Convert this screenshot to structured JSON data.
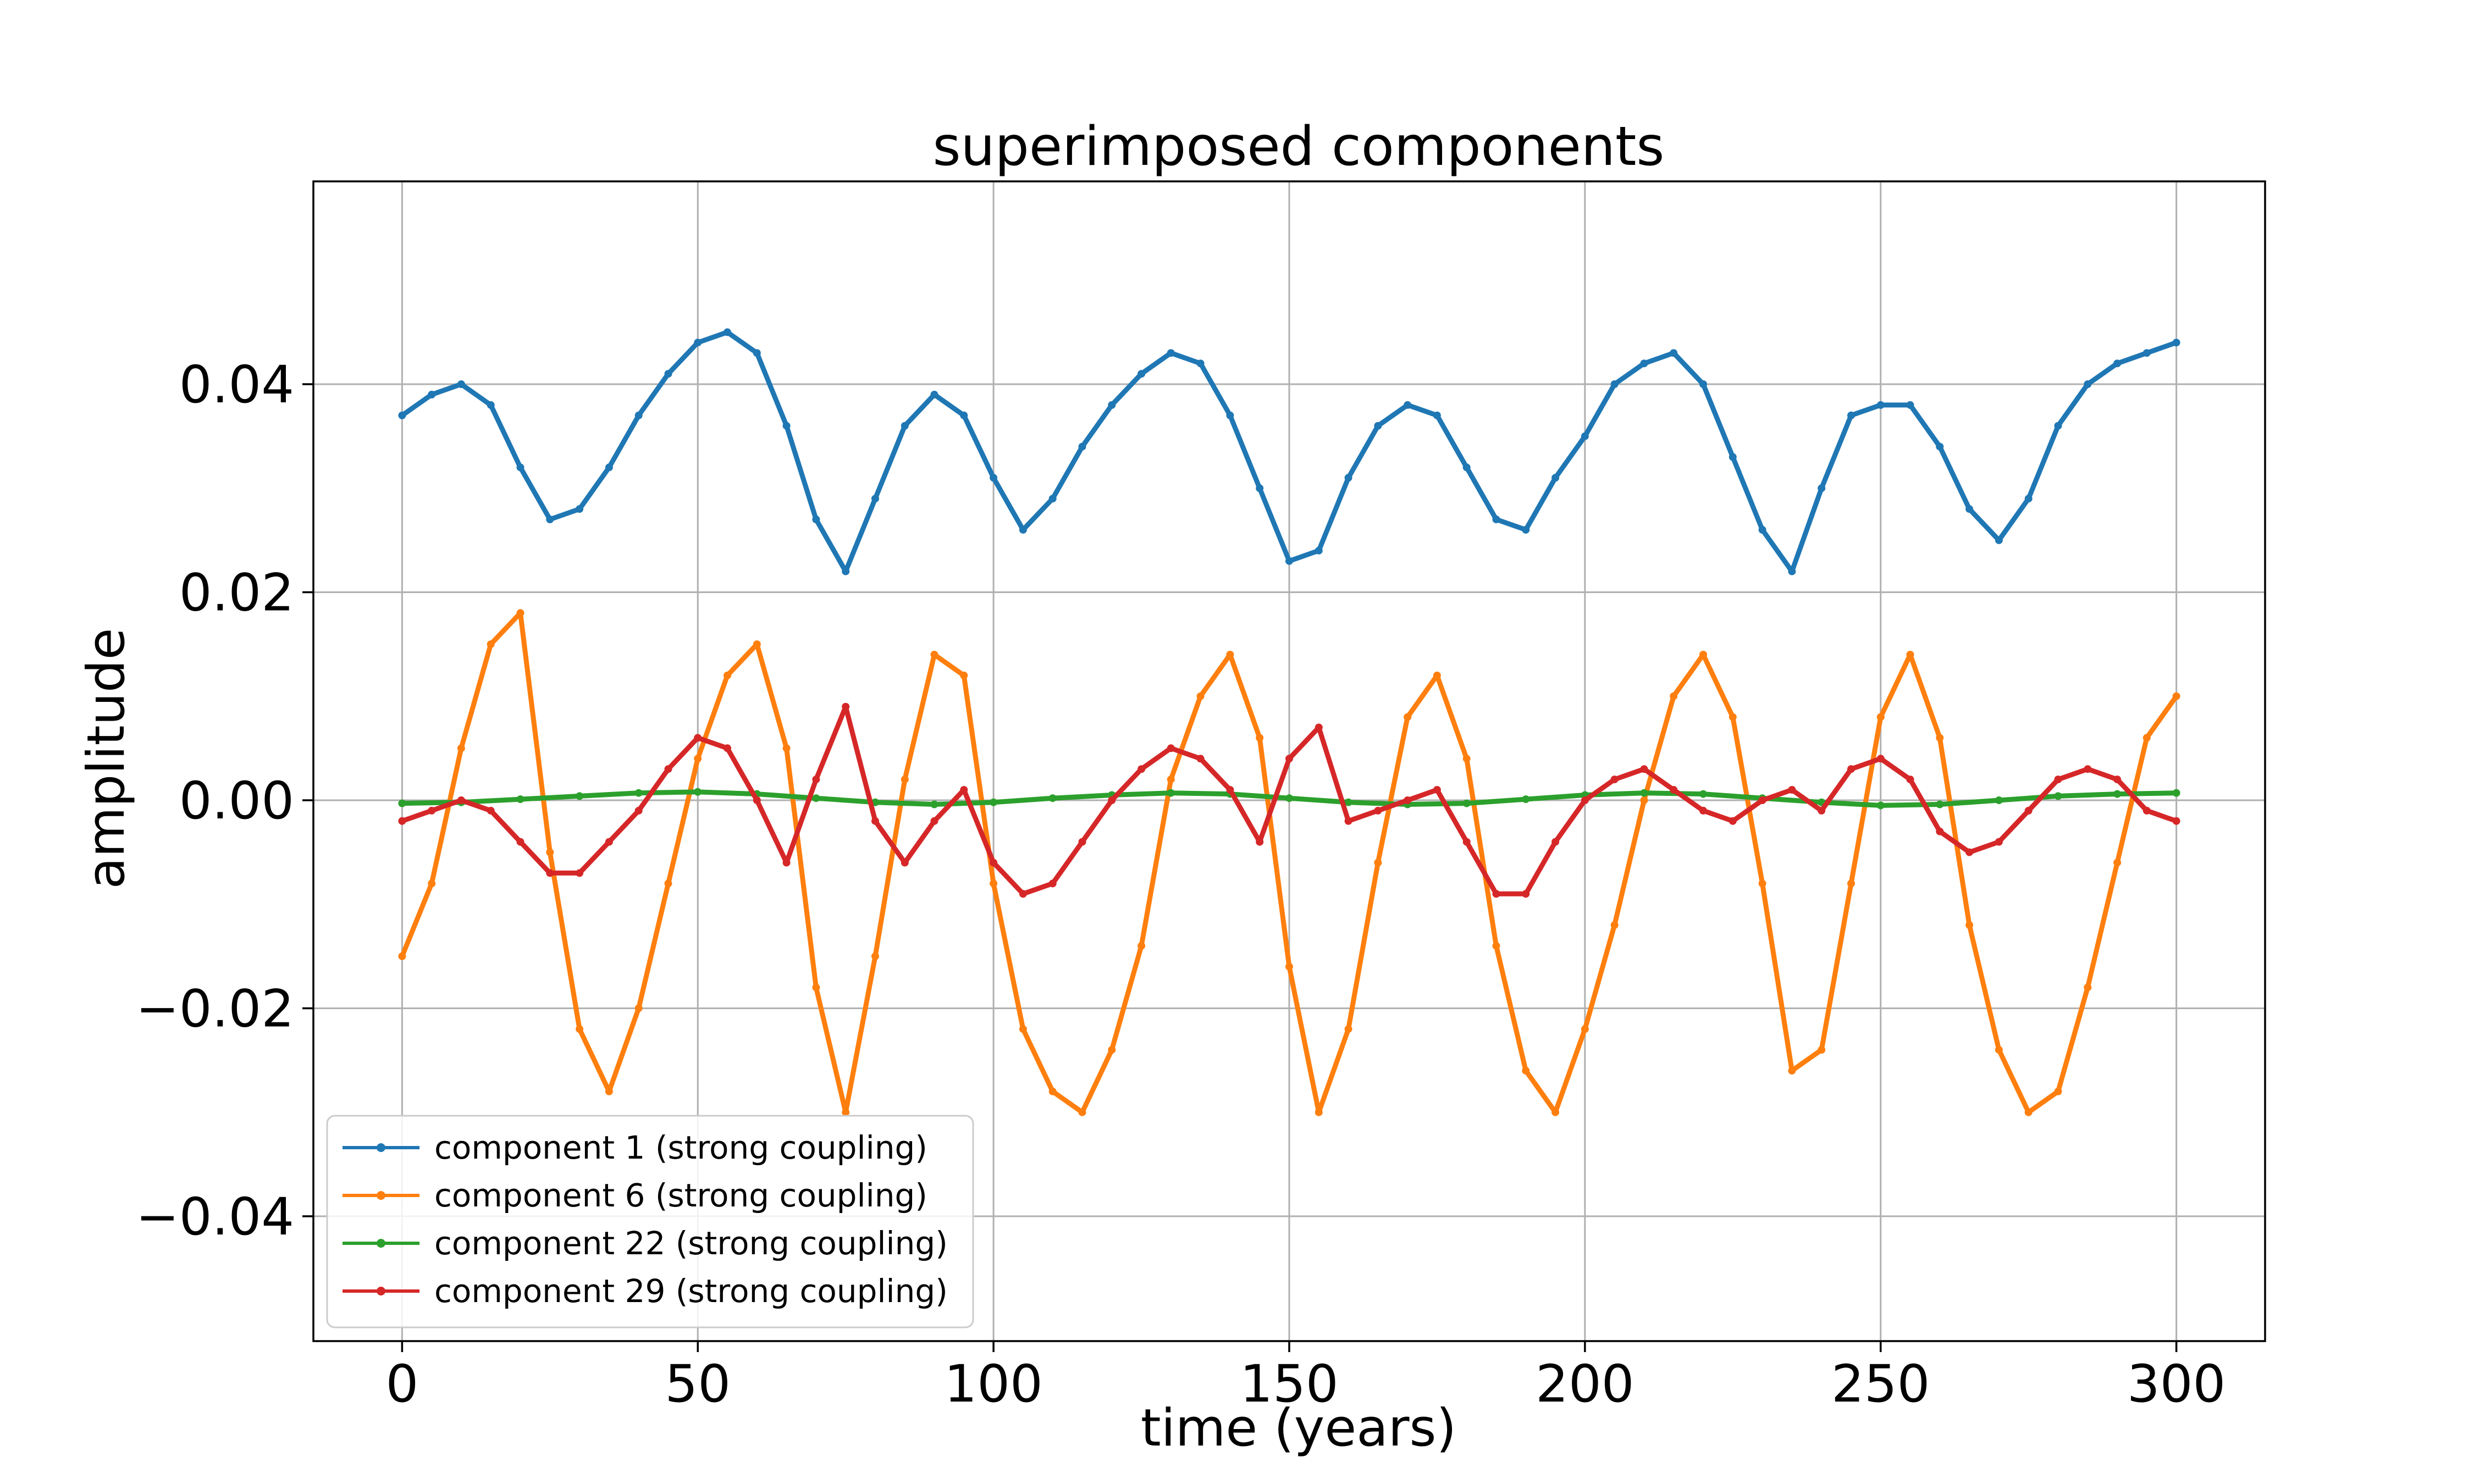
{
  "chart_data": {
    "type": "line",
    "title": "superimposed components",
    "xlabel": "time (years)",
    "ylabel": "amplitude",
    "xlim": [
      -15,
      315
    ],
    "ylim": [
      -0.052,
      0.0595
    ],
    "xticks": [
      0,
      50,
      100,
      150,
      200,
      250,
      300
    ],
    "xtick_labels": [
      "0",
      "50",
      "100",
      "150",
      "200",
      "250",
      "300"
    ],
    "yticks": [
      0.04,
      0.02,
      0.0,
      -0.02,
      -0.04
    ],
    "ytick_labels": [
      "0.04",
      "0.02",
      "0.00",
      "−0.02",
      "−0.04"
    ],
    "grid": true,
    "legend_position": "lower-left",
    "series": [
      {
        "name": "component 1 (strong coupling)",
        "color": "#1f77b4",
        "x": [
          0,
          5,
          10,
          15,
          20,
          25,
          30,
          35,
          40,
          45,
          50,
          55,
          60,
          65,
          70,
          75,
          80,
          85,
          90,
          95,
          100,
          105,
          110,
          115,
          120,
          125,
          130,
          135,
          140,
          145,
          150,
          155,
          160,
          165,
          170,
          175,
          180,
          185,
          190,
          195,
          200,
          205,
          210,
          215,
          220,
          225,
          230,
          235,
          240,
          245,
          250,
          255,
          260,
          265,
          270,
          275,
          280,
          285,
          290,
          295,
          300
        ],
        "y": [
          0.037,
          0.039,
          0.04,
          0.038,
          0.032,
          0.027,
          0.028,
          0.032,
          0.037,
          0.041,
          0.044,
          0.045,
          0.043,
          0.036,
          0.027,
          0.022,
          0.029,
          0.036,
          0.039,
          0.037,
          0.031,
          0.026,
          0.029,
          0.034,
          0.038,
          0.041,
          0.043,
          0.042,
          0.037,
          0.03,
          0.023,
          0.024,
          0.031,
          0.036,
          0.038,
          0.037,
          0.032,
          0.027,
          0.026,
          0.031,
          0.035,
          0.04,
          0.042,
          0.043,
          0.04,
          0.033,
          0.026,
          0.022,
          0.03,
          0.037,
          0.038,
          0.038,
          0.034,
          0.028,
          0.025,
          0.029,
          0.036,
          0.04,
          0.042,
          0.043,
          0.044
        ]
      },
      {
        "name": "component 6 (strong coupling)",
        "color": "#ff7f0e",
        "x": [
          0,
          5,
          10,
          15,
          20,
          25,
          30,
          35,
          40,
          45,
          50,
          55,
          60,
          65,
          70,
          75,
          80,
          85,
          90,
          95,
          100,
          105,
          110,
          115,
          120,
          125,
          130,
          135,
          140,
          145,
          150,
          155,
          160,
          165,
          170,
          175,
          180,
          185,
          190,
          195,
          200,
          205,
          210,
          215,
          220,
          225,
          230,
          235,
          240,
          245,
          250,
          255,
          260,
          265,
          270,
          275,
          280,
          285,
          290,
          295,
          300
        ],
        "y": [
          -0.015,
          -0.008,
          0.005,
          0.015,
          0.018,
          -0.005,
          -0.022,
          -0.028,
          -0.02,
          -0.008,
          0.004,
          0.012,
          0.015,
          0.005,
          -0.018,
          -0.03,
          -0.015,
          0.002,
          0.014,
          0.012,
          -0.008,
          -0.022,
          -0.028,
          -0.03,
          -0.024,
          -0.014,
          0.002,
          0.01,
          0.014,
          0.006,
          -0.016,
          -0.03,
          -0.022,
          -0.006,
          0.008,
          0.012,
          0.004,
          -0.014,
          -0.026,
          -0.03,
          -0.022,
          -0.012,
          0.0,
          0.01,
          0.014,
          0.008,
          -0.008,
          -0.026,
          -0.024,
          -0.008,
          0.008,
          0.014,
          0.006,
          -0.012,
          -0.024,
          -0.03,
          -0.028,
          -0.018,
          -0.006,
          0.006,
          0.01
        ]
      },
      {
        "name": "component 22 (strong coupling)",
        "color": "#2ca02c",
        "x": [
          0,
          10,
          20,
          30,
          40,
          50,
          60,
          70,
          80,
          90,
          100,
          110,
          120,
          130,
          140,
          150,
          160,
          170,
          180,
          190,
          200,
          210,
          220,
          230,
          240,
          250,
          260,
          270,
          280,
          290,
          300
        ],
        "y": [
          -0.0003,
          -0.0002,
          0.0001,
          0.0004,
          0.0007,
          0.0008,
          0.0006,
          0.0002,
          -0.0002,
          -0.0004,
          -0.0002,
          0.0002,
          0.0005,
          0.0007,
          0.0006,
          0.0002,
          -0.0002,
          -0.0004,
          -0.0003,
          0.0001,
          0.0005,
          0.0007,
          0.0006,
          0.0002,
          -0.0002,
          -0.0005,
          -0.0004,
          0.0,
          0.0004,
          0.0006,
          0.0007
        ]
      },
      {
        "name": "component 29 (strong coupling)",
        "color": "#d62728",
        "x": [
          0,
          5,
          10,
          15,
          20,
          25,
          30,
          35,
          40,
          45,
          50,
          55,
          60,
          65,
          70,
          75,
          80,
          85,
          90,
          95,
          100,
          105,
          110,
          115,
          120,
          125,
          130,
          135,
          140,
          145,
          150,
          155,
          160,
          165,
          170,
          175,
          180,
          185,
          190,
          195,
          200,
          205,
          210,
          215,
          220,
          225,
          230,
          235,
          240,
          245,
          250,
          255,
          260,
          265,
          270,
          275,
          280,
          285,
          290,
          295,
          300
        ],
        "y": [
          -0.002,
          -0.001,
          0.0,
          -0.001,
          -0.004,
          -0.007,
          -0.007,
          -0.004,
          -0.001,
          0.003,
          0.006,
          0.005,
          0.0,
          -0.006,
          0.002,
          0.009,
          -0.002,
          -0.006,
          -0.002,
          0.001,
          -0.006,
          -0.009,
          -0.008,
          -0.004,
          0.0,
          0.003,
          0.005,
          0.004,
          0.001,
          -0.004,
          0.004,
          0.007,
          -0.002,
          -0.001,
          0.0,
          0.001,
          -0.004,
          -0.009,
          -0.009,
          -0.004,
          0.0,
          0.002,
          0.003,
          0.001,
          -0.001,
          -0.002,
          0.0,
          0.001,
          -0.001,
          0.003,
          0.004,
          0.002,
          -0.003,
          -0.005,
          -0.004,
          -0.001,
          0.002,
          0.003,
          0.002,
          -0.001,
          -0.002
        ]
      }
    ]
  }
}
